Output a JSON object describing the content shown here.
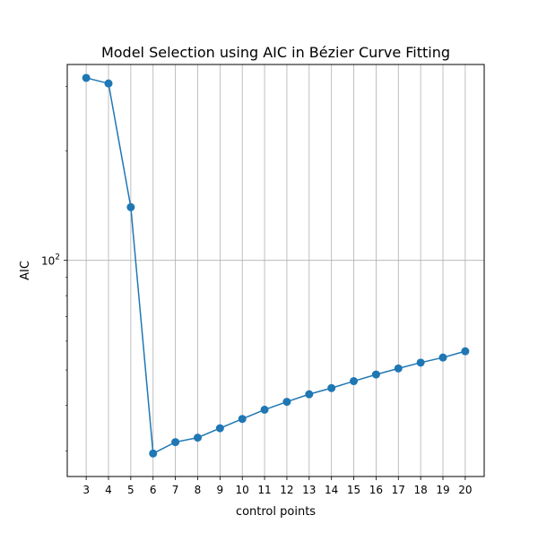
{
  "chart_data": {
    "type": "line",
    "title": "Model Selection using AIC in Bézier Curve Fitting",
    "xlabel": "control points",
    "ylabel": "AIC",
    "y_scale": "log",
    "y_tick_labels": [
      {
        "value": 100,
        "label": "10^2"
      }
    ],
    "x": [
      3,
      4,
      5,
      6,
      7,
      8,
      9,
      10,
      11,
      12,
      13,
      14,
      15,
      16,
      17,
      18,
      19,
      20
    ],
    "series": [
      {
        "values": [
          317,
          306,
          140,
          29.5,
          31.7,
          32.6,
          34.6,
          36.7,
          38.9,
          40.9,
          42.9,
          44.6,
          46.6,
          48.6,
          50.5,
          52.4,
          54.1,
          56.3
        ],
        "color": "#1f77b4",
        "marker": "circle"
      }
    ],
    "xlim": [
      2.15,
      20.85
    ],
    "ylim": [
      25.5,
      345
    ],
    "grid": true,
    "legend": "none"
  }
}
